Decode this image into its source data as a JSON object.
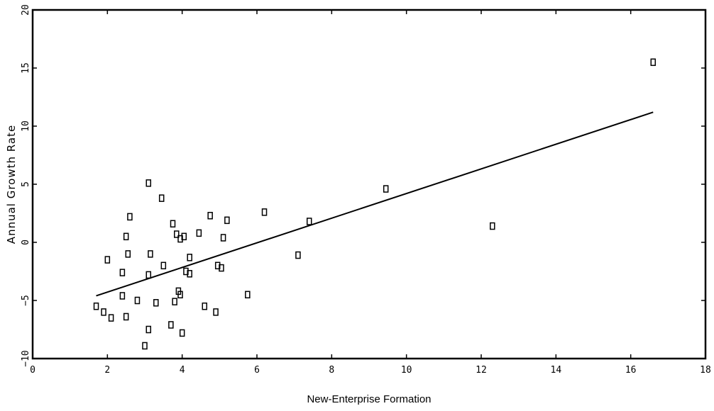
{
  "chart_data": {
    "type": "scatter",
    "title": "",
    "xlabel": "New-Enterprise Formation",
    "ylabel": "Annual Growth Rate",
    "xlim": [
      0,
      18
    ],
    "ylim": [
      -10,
      20
    ],
    "xticks": [
      "0",
      "2",
      "4",
      "6",
      "8",
      "10",
      "12",
      "14",
      "16",
      "18"
    ],
    "yticks": [
      "-10",
      "-5",
      "0",
      "5",
      "10",
      "15",
      "20"
    ],
    "grid": false,
    "points": [
      [
        1.7,
        -5.5
      ],
      [
        1.9,
        -6.0
      ],
      [
        2.0,
        -1.5
      ],
      [
        2.1,
        -6.5
      ],
      [
        2.4,
        -2.6
      ],
      [
        2.4,
        -4.6
      ],
      [
        2.5,
        0.5
      ],
      [
        2.5,
        -6.4
      ],
      [
        2.55,
        -1.0
      ],
      [
        2.6,
        2.2
      ],
      [
        2.8,
        -5.0
      ],
      [
        3.0,
        -8.9
      ],
      [
        3.1,
        -7.5
      ],
      [
        3.1,
        -2.8
      ],
      [
        3.15,
        -1.0
      ],
      [
        3.1,
        5.1
      ],
      [
        3.3,
        -5.2
      ],
      [
        3.45,
        3.8
      ],
      [
        3.5,
        -2.0
      ],
      [
        3.7,
        -7.1
      ],
      [
        3.75,
        1.6
      ],
      [
        3.8,
        -5.1
      ],
      [
        3.85,
        0.7
      ],
      [
        3.9,
        -4.2
      ],
      [
        3.95,
        -4.5
      ],
      [
        3.95,
        0.3
      ],
      [
        4.0,
        -7.8
      ],
      [
        4.05,
        0.5
      ],
      [
        4.1,
        -2.5
      ],
      [
        4.2,
        -2.7
      ],
      [
        4.2,
        -1.3
      ],
      [
        4.45,
        0.8
      ],
      [
        4.6,
        -5.5
      ],
      [
        4.75,
        2.3
      ],
      [
        4.9,
        -6.0
      ],
      [
        4.95,
        -2.0
      ],
      [
        5.05,
        -2.2
      ],
      [
        5.1,
        0.4
      ],
      [
        5.2,
        1.9
      ],
      [
        5.75,
        -4.5
      ],
      [
        6.2,
        2.6
      ],
      [
        7.1,
        -1.1
      ],
      [
        7.4,
        1.8
      ],
      [
        9.45,
        4.6
      ],
      [
        12.3,
        1.4
      ],
      [
        16.6,
        15.5
      ]
    ],
    "fit_line": {
      "x": [
        1.7,
        16.6
      ],
      "y": [
        -4.6,
        11.2
      ]
    },
    "marker": "square",
    "line_color": "#000000"
  }
}
